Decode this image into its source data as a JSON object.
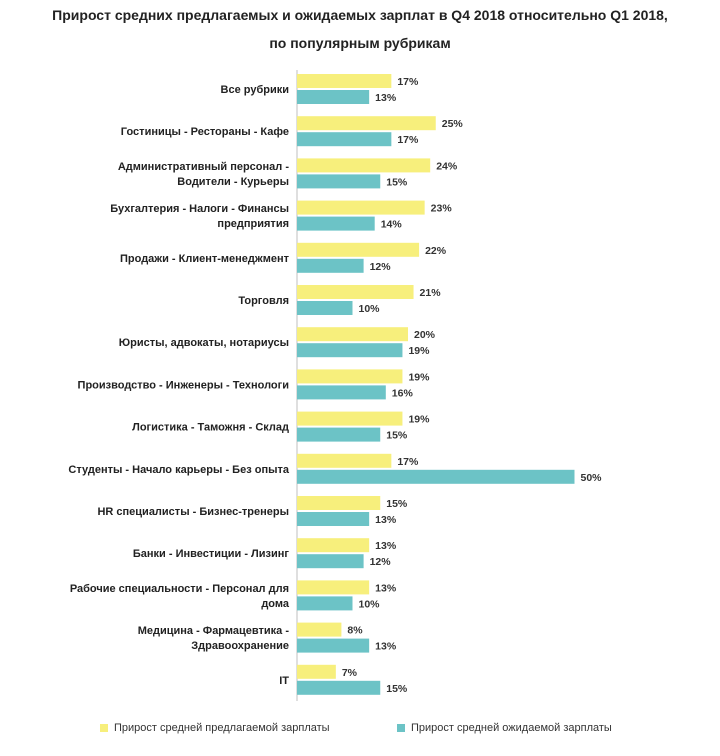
{
  "chart_data": {
    "type": "bar",
    "orientation": "horizontal",
    "title": "Прирост средних предлагаемых и ожидаемых зарплат в Q4 2018 относительно Q1 2018,",
    "subtitle": "по популярным рубрикам",
    "categories": [
      [
        "Все рубрики"
      ],
      [
        "Гостиницы  - Рестораны - Кафе"
      ],
      [
        "Административный  персонал  -",
        "Водители - Курьеры"
      ],
      [
        "Бухгалтерия - Налоги - Финансы",
        "предприятия"
      ],
      [
        "Продажи - Клиент-менеджмент"
      ],
      [
        "Торговля"
      ],
      [
        "Юристы, адвокаты,  нотариусы"
      ],
      [
        "Производство  - Инженеры - Технологи"
      ],
      [
        "Логистика  - Таможня  - Склад"
      ],
      [
        "Студенты - Начало карьеры  - Без опыта"
      ],
      [
        "HR специалисты   - Бизнес-тренеры"
      ],
      [
        "Банки - Инвестиции  - Лизинг"
      ],
      [
        "Рабочие специальности  - Персонал для",
        "дома"
      ],
      [
        "Медицина - Фармацевтика  -",
        "Здравоохранение"
      ],
      [
        "IT"
      ]
    ],
    "series": [
      {
        "name": "Прирост средней  предлагаемой зарплаты",
        "color": "#f7ef7c",
        "values": [
          17,
          25,
          24,
          23,
          22,
          21,
          20,
          19,
          19,
          17,
          15,
          13,
          13,
          8,
          7
        ],
        "labels": [
          "17%",
          "25%",
          "24%",
          "23%",
          "22%",
          "21%",
          "20%",
          "19%",
          "19%",
          "17%",
          "15%",
          "13%",
          "13%",
          "8%",
          "7%"
        ]
      },
      {
        "name": "Прирост средней  ожидаемой зарплаты",
        "color": "#6cc3c6",
        "values": [
          13,
          17,
          15,
          14,
          12,
          10,
          19,
          16,
          15,
          50,
          13,
          12,
          10,
          13,
          15
        ],
        "labels": [
          "13%",
          "17%",
          "15%",
          "14%",
          "12%",
          "10%",
          "19%",
          "16%",
          "15%",
          "50%",
          "13%",
          "12%",
          "10%",
          "13%",
          "15%"
        ]
      }
    ],
    "xlim": [
      0,
      50
    ],
    "grid": false,
    "legend": "bottom"
  }
}
